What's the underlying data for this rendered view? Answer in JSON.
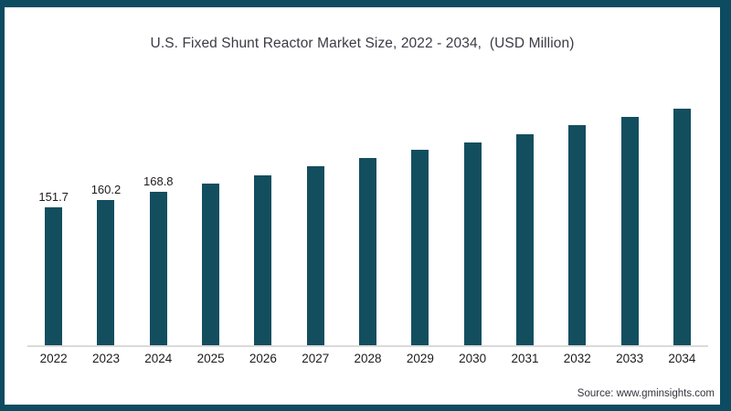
{
  "title": "U.S. Fixed Shunt Reactor Market Size, 2022 - 2034,  (USD Million)",
  "source": "Source: www.gminsights.com",
  "colors": {
    "frame_border": "#0d4b61",
    "bar": "#134e5f",
    "axis_line": "#dadada",
    "title_text": "#3b3b46",
    "label_text": "#1c1c1c",
    "background": "#ffffff"
  },
  "chart_data": {
    "type": "bar",
    "title": "U.S. Fixed Shunt Reactor Market Size, 2022 - 2034,  (USD Million)",
    "categories": [
      "2022",
      "2023",
      "2024",
      "2025",
      "2026",
      "2027",
      "2028",
      "2029",
      "2030",
      "2031",
      "2032",
      "2033",
      "2034"
    ],
    "values": [
      151.7,
      160.2,
      168.8,
      178.1,
      187.0,
      196.5,
      205.6,
      215.0,
      223.5,
      232.5,
      242.6,
      251.0,
      260.0
    ],
    "data_labels": [
      "151.7",
      "160.2",
      "168.8",
      "",
      "",
      "",
      "",
      "",
      "",
      "",
      "",
      "",
      ""
    ],
    "value_unit": "USD Million",
    "xlabel": "",
    "ylabel": "",
    "ylim": [
      0,
      270
    ],
    "grid": false,
    "legend": "none",
    "bar_color": "#134e5f"
  }
}
